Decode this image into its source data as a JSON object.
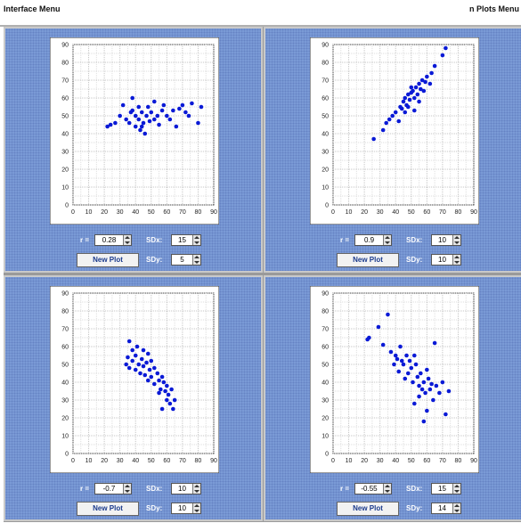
{
  "menubar": {
    "left_label": "Interface Menu",
    "right_label": "n Plots Menu"
  },
  "axis": {
    "x_ticks": [
      "0",
      "10",
      "20",
      "30",
      "40",
      "50",
      "60",
      "70",
      "80",
      "90"
    ],
    "y_ticks": [
      "0",
      "10",
      "20",
      "30",
      "40",
      "50",
      "60",
      "70",
      "80",
      "90"
    ]
  },
  "labels": {
    "r": "r =",
    "sdx": "SDx:",
    "sdy": "SDy:",
    "new_plot": "New Plot"
  },
  "colors": {
    "panel_bg": "#7b9bd6",
    "point": "#0a1ad6"
  },
  "panels": [
    {
      "r": "0.28",
      "sdx": "15",
      "sdy": "5"
    },
    {
      "r": "0.9",
      "sdx": "10",
      "sdy": "10"
    },
    {
      "r": "-0.7",
      "sdx": "10",
      "sdy": "10"
    },
    {
      "r": "-0.55",
      "sdx": "15",
      "sdy": "14"
    }
  ],
  "chart_data": [
    {
      "type": "scatter",
      "xlim": [
        0,
        90
      ],
      "ylim": [
        0,
        90
      ],
      "points": [
        [
          22,
          44
        ],
        [
          24,
          45
        ],
        [
          27,
          46
        ],
        [
          30,
          50
        ],
        [
          32,
          56
        ],
        [
          34,
          48
        ],
        [
          36,
          46
        ],
        [
          37,
          52
        ],
        [
          38,
          60
        ],
        [
          40,
          44
        ],
        [
          40,
          50
        ],
        [
          42,
          48
        ],
        [
          42,
          55
        ],
        [
          43,
          42
        ],
        [
          44,
          52
        ],
        [
          45,
          46
        ],
        [
          46,
          40
        ],
        [
          47,
          50
        ],
        [
          48,
          55
        ],
        [
          49,
          47
        ],
        [
          50,
          52
        ],
        [
          52,
          48
        ],
        [
          52,
          58
        ],
        [
          54,
          50
        ],
        [
          55,
          45
        ],
        [
          57,
          53
        ],
        [
          58,
          56
        ],
        [
          60,
          50
        ],
        [
          62,
          48
        ],
        [
          64,
          53
        ],
        [
          66,
          44
        ],
        [
          68,
          54
        ],
        [
          70,
          56
        ],
        [
          72,
          52
        ],
        [
          74,
          50
        ],
        [
          76,
          57
        ],
        [
          80,
          46
        ],
        [
          82,
          55
        ],
        [
          44,
          44
        ],
        [
          38,
          53
        ]
      ]
    },
    {
      "type": "scatter",
      "xlim": [
        0,
        90
      ],
      "ylim": [
        0,
        90
      ],
      "points": [
        [
          26,
          37
        ],
        [
          32,
          42
        ],
        [
          34,
          46
        ],
        [
          36,
          48
        ],
        [
          38,
          50
        ],
        [
          40,
          52
        ],
        [
          42,
          47
        ],
        [
          43,
          55
        ],
        [
          44,
          54
        ],
        [
          45,
          58
        ],
        [
          46,
          60
        ],
        [
          47,
          56
        ],
        [
          48,
          62
        ],
        [
          49,
          59
        ],
        [
          50,
          63
        ],
        [
          51,
          64
        ],
        [
          52,
          60
        ],
        [
          53,
          66
        ],
        [
          54,
          62
        ],
        [
          55,
          68
        ],
        [
          56,
          65
        ],
        [
          57,
          70
        ],
        [
          58,
          64
        ],
        [
          59,
          69
        ],
        [
          60,
          72
        ],
        [
          62,
          68
        ],
        [
          63,
          74
        ],
        [
          65,
          78
        ],
        [
          70,
          84
        ],
        [
          72,
          88
        ],
        [
          48,
          55
        ],
        [
          52,
          53
        ],
        [
          55,
          58
        ],
        [
          50,
          66
        ],
        [
          46,
          52
        ]
      ]
    },
    {
      "type": "scatter",
      "xlim": [
        0,
        90
      ],
      "ylim": [
        0,
        90
      ],
      "points": [
        [
          34,
          50
        ],
        [
          35,
          54
        ],
        [
          36,
          63
        ],
        [
          36,
          48
        ],
        [
          38,
          52
        ],
        [
          38,
          58
        ],
        [
          40,
          47
        ],
        [
          40,
          55
        ],
        [
          41,
          60
        ],
        [
          42,
          50
        ],
        [
          43,
          45
        ],
        [
          44,
          53
        ],
        [
          45,
          49
        ],
        [
          45,
          58
        ],
        [
          46,
          44
        ],
        [
          47,
          51
        ],
        [
          48,
          41
        ],
        [
          48,
          56
        ],
        [
          49,
          47
        ],
        [
          50,
          43
        ],
        [
          50,
          52
        ],
        [
          52,
          39
        ],
        [
          52,
          48
        ],
        [
          54,
          45
        ],
        [
          55,
          41
        ],
        [
          56,
          36
        ],
        [
          57,
          43
        ],
        [
          58,
          40
        ],
        [
          59,
          35
        ],
        [
          60,
          30
        ],
        [
          60,
          38
        ],
        [
          61,
          33
        ],
        [
          62,
          28
        ],
        [
          63,
          36
        ],
        [
          64,
          25
        ],
        [
          65,
          30
        ],
        [
          55,
          34
        ],
        [
          57,
          25
        ]
      ]
    },
    {
      "type": "scatter",
      "xlim": [
        0,
        90
      ],
      "ylim": [
        0,
        90
      ],
      "points": [
        [
          22,
          64
        ],
        [
          23,
          65
        ],
        [
          29,
          71
        ],
        [
          32,
          61
        ],
        [
          35,
          78
        ],
        [
          37,
          57
        ],
        [
          39,
          50
        ],
        [
          40,
          55
        ],
        [
          41,
          53
        ],
        [
          42,
          46
        ],
        [
          43,
          60
        ],
        [
          44,
          52
        ],
        [
          45,
          50
        ],
        [
          46,
          42
        ],
        [
          47,
          55
        ],
        [
          48,
          45
        ],
        [
          49,
          52
        ],
        [
          50,
          48
        ],
        [
          51,
          40
        ],
        [
          52,
          55
        ],
        [
          53,
          50
        ],
        [
          54,
          43
        ],
        [
          55,
          38
        ],
        [
          55,
          32
        ],
        [
          56,
          45
        ],
        [
          57,
          36
        ],
        [
          58,
          40
        ],
        [
          59,
          34
        ],
        [
          60,
          47
        ],
        [
          60,
          24
        ],
        [
          61,
          42
        ],
        [
          62,
          36
        ],
        [
          63,
          39
        ],
        [
          64,
          30
        ],
        [
          66,
          38
        ],
        [
          68,
          34
        ],
        [
          70,
          40
        ],
        [
          72,
          22
        ],
        [
          74,
          35
        ],
        [
          65,
          62
        ],
        [
          58,
          18
        ],
        [
          52,
          28
        ]
      ]
    }
  ]
}
